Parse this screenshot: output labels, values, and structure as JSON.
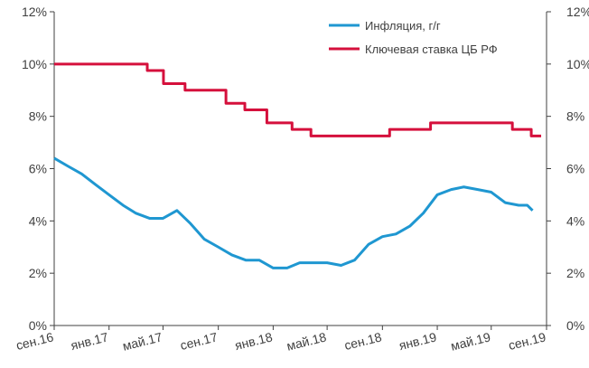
{
  "chart_data": {
    "type": "line",
    "title": "",
    "xlabel": "",
    "ylabel": "",
    "x_range": [
      "2016-09-01",
      "2019-09-01"
    ],
    "ylim": [
      0,
      12
    ],
    "y_ticks": [
      "0%",
      "2%",
      "4%",
      "6%",
      "8%",
      "10%",
      "12%"
    ],
    "y2_ticks": [
      "0%",
      "2%",
      "4%",
      "6%",
      "8%",
      "10%",
      "12%"
    ],
    "x_ticks": [
      {
        "date": "2016-09-01",
        "label": "сен.16"
      },
      {
        "date": "2017-01-01",
        "label": "янв.17"
      },
      {
        "date": "2017-05-01",
        "label": "май.17"
      },
      {
        "date": "2017-09-01",
        "label": "сен.17"
      },
      {
        "date": "2018-01-01",
        "label": "янв.18"
      },
      {
        "date": "2018-05-01",
        "label": "май.18"
      },
      {
        "date": "2018-09-01",
        "label": "сен.18"
      },
      {
        "date": "2019-01-01",
        "label": "янв.19"
      },
      {
        "date": "2019-05-01",
        "label": "май.19"
      },
      {
        "date": "2019-09-01",
        "label": "сен.19"
      }
    ],
    "legend_position": "top-right",
    "grid": false,
    "series": [
      {
        "name": "Инфляция, г/г",
        "color": "#1f97d1",
        "step": false,
        "points": [
          [
            "2016-09-01",
            6.4
          ],
          [
            "2016-10-01",
            6.1
          ],
          [
            "2016-11-01",
            5.8
          ],
          [
            "2016-12-01",
            5.4
          ],
          [
            "2017-01-01",
            5.0
          ],
          [
            "2017-02-01",
            4.6
          ],
          [
            "2017-03-01",
            4.3
          ],
          [
            "2017-04-01",
            4.1
          ],
          [
            "2017-05-01",
            4.1
          ],
          [
            "2017-06-01",
            4.4
          ],
          [
            "2017-07-01",
            3.9
          ],
          [
            "2017-08-01",
            3.3
          ],
          [
            "2017-09-01",
            3.0
          ],
          [
            "2017-10-01",
            2.7
          ],
          [
            "2017-11-01",
            2.5
          ],
          [
            "2017-12-01",
            2.5
          ],
          [
            "2018-01-01",
            2.2
          ],
          [
            "2018-02-01",
            2.2
          ],
          [
            "2018-03-01",
            2.4
          ],
          [
            "2018-04-01",
            2.4
          ],
          [
            "2018-05-01",
            2.4
          ],
          [
            "2018-06-01",
            2.3
          ],
          [
            "2018-07-01",
            2.5
          ],
          [
            "2018-08-01",
            3.1
          ],
          [
            "2018-09-01",
            3.4
          ],
          [
            "2018-10-01",
            3.5
          ],
          [
            "2018-11-01",
            3.8
          ],
          [
            "2018-12-01",
            4.3
          ],
          [
            "2019-01-01",
            5.0
          ],
          [
            "2019-02-01",
            5.2
          ],
          [
            "2019-03-01",
            5.3
          ],
          [
            "2019-04-01",
            5.2
          ],
          [
            "2019-05-01",
            5.1
          ],
          [
            "2019-06-01",
            4.7
          ],
          [
            "2019-07-01",
            4.6
          ],
          [
            "2019-07-20",
            4.6
          ],
          [
            "2019-08-01",
            4.4
          ]
        ]
      },
      {
        "name": "Ключевая ставка ЦБ РФ",
        "color": "#d5103c",
        "step": true,
        "points": [
          [
            "2016-09-01",
            10.0
          ],
          [
            "2017-03-27",
            9.75
          ],
          [
            "2017-05-02",
            9.25
          ],
          [
            "2017-06-19",
            9.0
          ],
          [
            "2017-09-18",
            8.5
          ],
          [
            "2017-10-30",
            8.25
          ],
          [
            "2017-12-18",
            7.75
          ],
          [
            "2018-02-12",
            7.5
          ],
          [
            "2018-03-26",
            7.25
          ],
          [
            "2018-09-17",
            7.5
          ],
          [
            "2018-12-17",
            7.75
          ],
          [
            "2019-06-17",
            7.5
          ],
          [
            "2019-07-29",
            7.25
          ],
          [
            "2019-08-20",
            7.25
          ]
        ]
      }
    ]
  }
}
